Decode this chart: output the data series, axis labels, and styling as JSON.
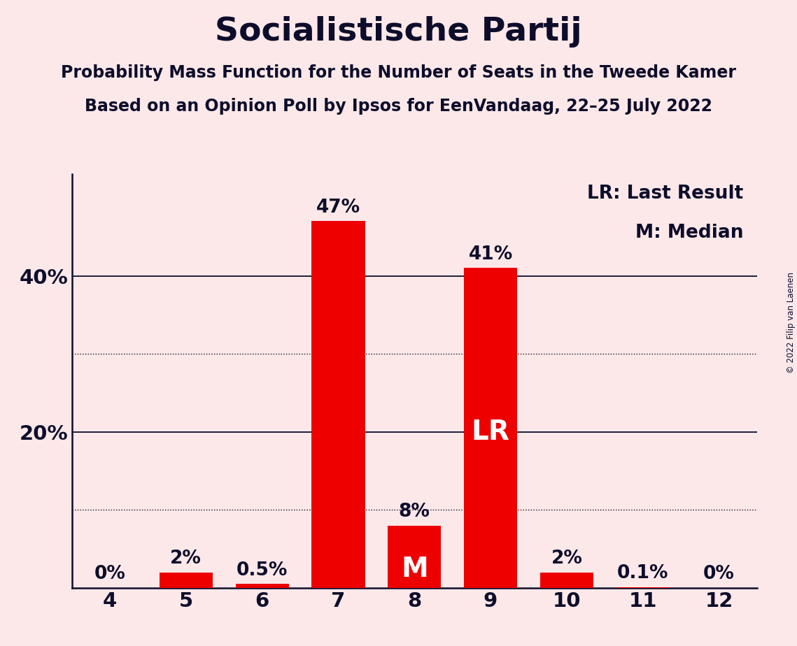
{
  "title": "Socialistische Partij",
  "subtitle1": "Probability Mass Function for the Number of Seats in the Tweede Kamer",
  "subtitle2": "Based on an Opinion Poll by Ipsos for EenVandaag, 22–25 July 2022",
  "copyright": "© 2022 Filip van Laenen",
  "categories": [
    4,
    5,
    6,
    7,
    8,
    9,
    10,
    11,
    12
  ],
  "values": [
    0.0,
    2.0,
    0.5,
    47.0,
    8.0,
    41.0,
    2.0,
    0.1,
    0.0
  ],
  "bar_labels": [
    "0%",
    "2%",
    "0.5%",
    "47%",
    "8%",
    "41%",
    "2%",
    "0.1%",
    "0%"
  ],
  "bar_color": "#ee0000",
  "background_color": "#fce8e8",
  "text_color": "#0d0d2b",
  "median_bar_cat": 8,
  "lr_bar_cat": 9,
  "legend_lr": "LR: Last Result",
  "legend_m": "M: Median",
  "ylim": [
    0,
    53
  ],
  "title_fontsize": 34,
  "subtitle_fontsize": 17,
  "label_fontsize": 19,
  "tick_fontsize": 21,
  "legend_fontsize": 19,
  "inside_label_fontsize": 28,
  "bar_width": 0.7
}
